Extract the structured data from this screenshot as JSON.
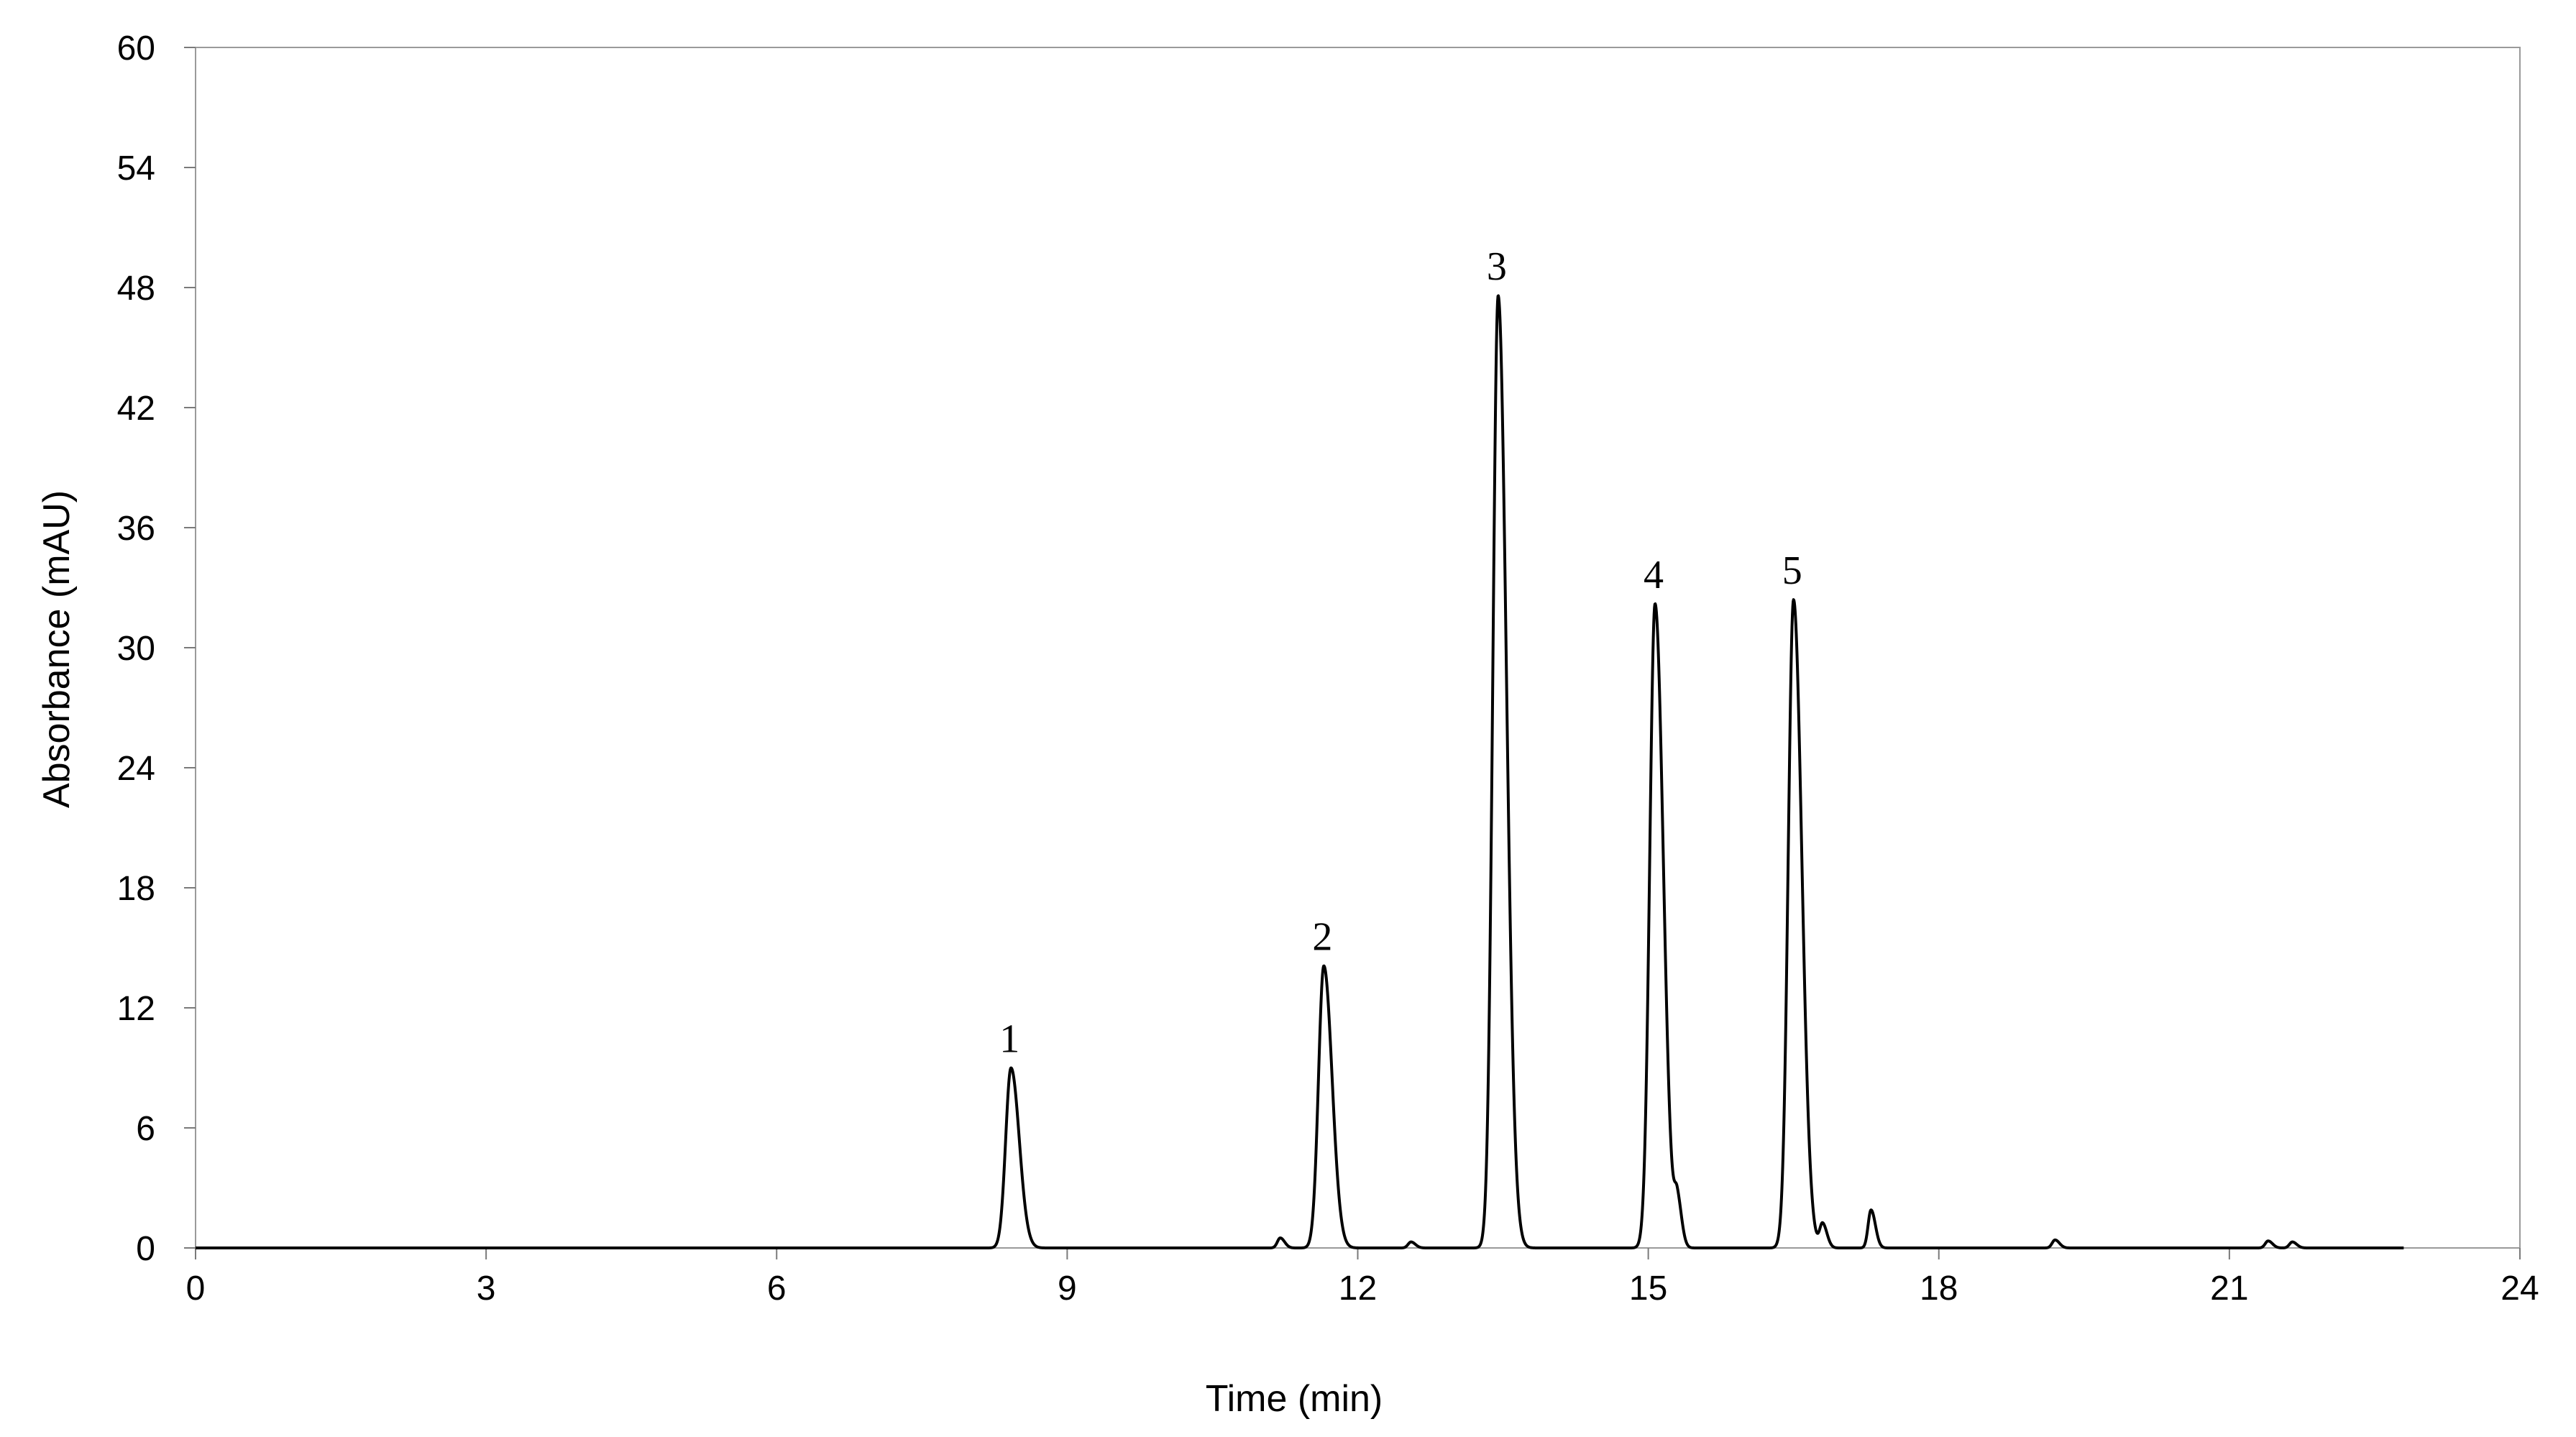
{
  "chart_data": {
    "type": "line",
    "xlabel": "Time (min)",
    "ylabel": "Absorbance (mAU)",
    "xlim": [
      0,
      24
    ],
    "ylim": [
      0,
      60
    ],
    "xticks": [
      0,
      3,
      6,
      9,
      12,
      15,
      18,
      21,
      24
    ],
    "yticks": [
      0,
      6,
      12,
      18,
      24,
      30,
      36,
      42,
      48,
      54,
      60
    ],
    "grid": false,
    "series": [
      {
        "line_color": "#000000",
        "x_range": [
          0,
          22.8
        ],
        "baseline": 0,
        "peaks": [
          {
            "x": 8.42,
            "y": 9.0,
            "label": "1"
          },
          {
            "x": 11.65,
            "y": 14.1,
            "label": "2"
          },
          {
            "x": 13.45,
            "y": 47.6,
            "label": "3"
          },
          {
            "x": 15.07,
            "y": 32.2,
            "label": "4"
          },
          {
            "x": 16.5,
            "y": 32.4,
            "label": "5"
          }
        ],
        "minor_peaks": [
          {
            "x": 11.2,
            "y": 0.5
          },
          {
            "x": 12.55,
            "y": 0.3
          },
          {
            "x": 15.3,
            "y": 2.2
          },
          {
            "x": 16.8,
            "y": 1.2
          },
          {
            "x": 17.3,
            "y": 1.9
          },
          {
            "x": 19.2,
            "y": 0.4
          },
          {
            "x": 21.4,
            "y": 0.35
          },
          {
            "x": 21.65,
            "y": 0.3
          }
        ]
      }
    ]
  }
}
